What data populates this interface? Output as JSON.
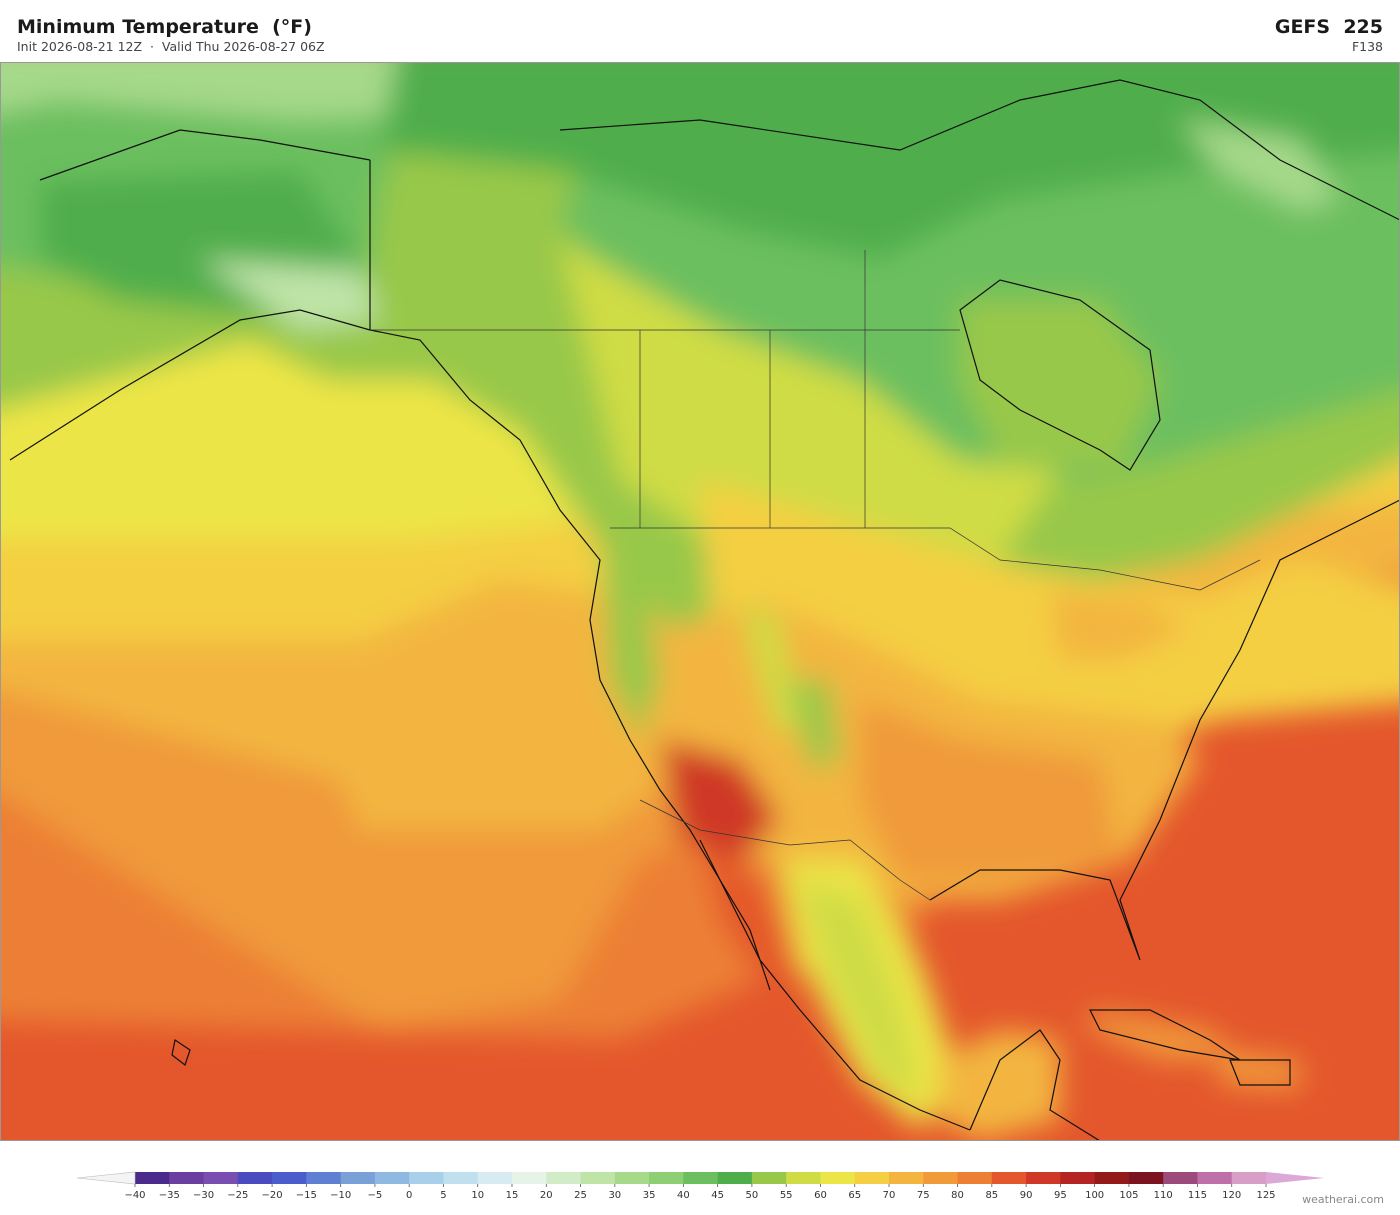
{
  "header": {
    "title": "Minimum Temperature  (°F)",
    "subtitle": "Init 2026-08-21 12Z  ·  Valid Thu 2026-08-27 06Z",
    "model": "GEFS  225",
    "forecast_hour": "F138"
  },
  "colorbar": {
    "ticks": [
      {
        "value": -40,
        "label": "−40"
      },
      {
        "value": -35,
        "label": "−35"
      },
      {
        "value": -30,
        "label": "−30"
      },
      {
        "value": -25,
        "label": "−25"
      },
      {
        "value": -20,
        "label": "−20"
      },
      {
        "value": -15,
        "label": "−15"
      },
      {
        "value": -10,
        "label": "−10"
      },
      {
        "value": -5,
        "label": "−5"
      },
      0,
      5,
      10,
      15,
      20,
      25,
      30,
      35,
      40,
      45,
      50,
      55,
      60,
      65,
      70,
      75,
      80,
      85,
      90,
      95,
      100,
      105,
      110,
      115,
      120,
      125
    ],
    "colors": [
      "#4a2a8a",
      "#6b3fa0",
      "#7a4db0",
      "#4b4bc0",
      "#4a5ecb",
      "#5e7fd2",
      "#7aa0d8",
      "#8fb9e0",
      "#a8d0ea",
      "#c0e0f0",
      "#d6ecf2",
      "#e6f4e8",
      "#d3ecc8",
      "#bfe4a8",
      "#a6d98a",
      "#8dcf72",
      "#6cbf5e",
      "#4fae4c",
      "#98c84a",
      "#cfdc45",
      "#ece547",
      "#f4cf43",
      "#f3b53f",
      "#f09a3a",
      "#ec7f34",
      "#e4572c",
      "#cf3727",
      "#b42423",
      "#941a1a",
      "#7c1420",
      "#9b4a7c",
      "#c070a8",
      "#d89ec8"
    ],
    "extend_colors": [
      "#f4f4f4",
      "#dca8d8"
    ]
  },
  "footer": {
    "watermark": "weatherai.com"
  }
}
